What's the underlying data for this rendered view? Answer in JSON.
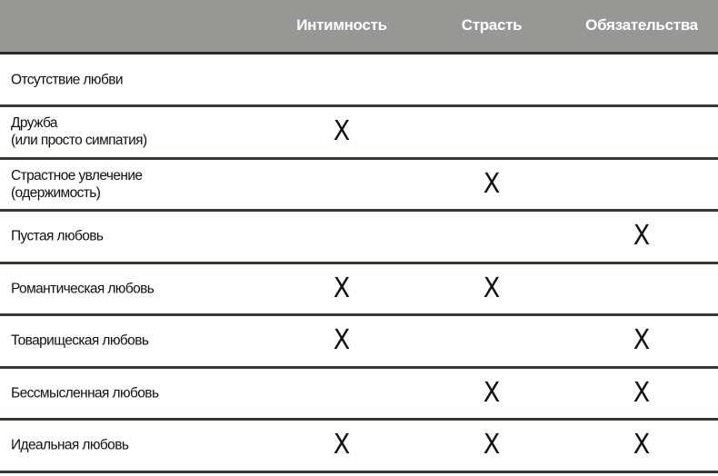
{
  "columns": [
    "Интимность",
    "Страсть",
    "Обязательства"
  ],
  "mark_symbol": "X",
  "rows": [
    {
      "label": "Отсутствие любви",
      "marks": [
        false,
        false,
        false
      ]
    },
    {
      "label": "Дружба\n(или просто симпатия)",
      "marks": [
        true,
        false,
        false
      ]
    },
    {
      "label": "Страстное увлечение\n(одержимость)",
      "marks": [
        false,
        true,
        false
      ]
    },
    {
      "label": "Пустая любовь",
      "marks": [
        false,
        false,
        true
      ]
    },
    {
      "label": "Романтическая любовь",
      "marks": [
        true,
        true,
        false
      ]
    },
    {
      "label": "Товарищеская любовь",
      "marks": [
        true,
        false,
        true
      ]
    },
    {
      "label": "Бессмысленная любовь",
      "marks": [
        false,
        true,
        true
      ]
    },
    {
      "label": "Идеальная любовь",
      "marks": [
        true,
        true,
        true
      ]
    }
  ],
  "colors": {
    "header_bg": "#979795",
    "header_text": "#ffffff",
    "divider": "#3a382e"
  }
}
